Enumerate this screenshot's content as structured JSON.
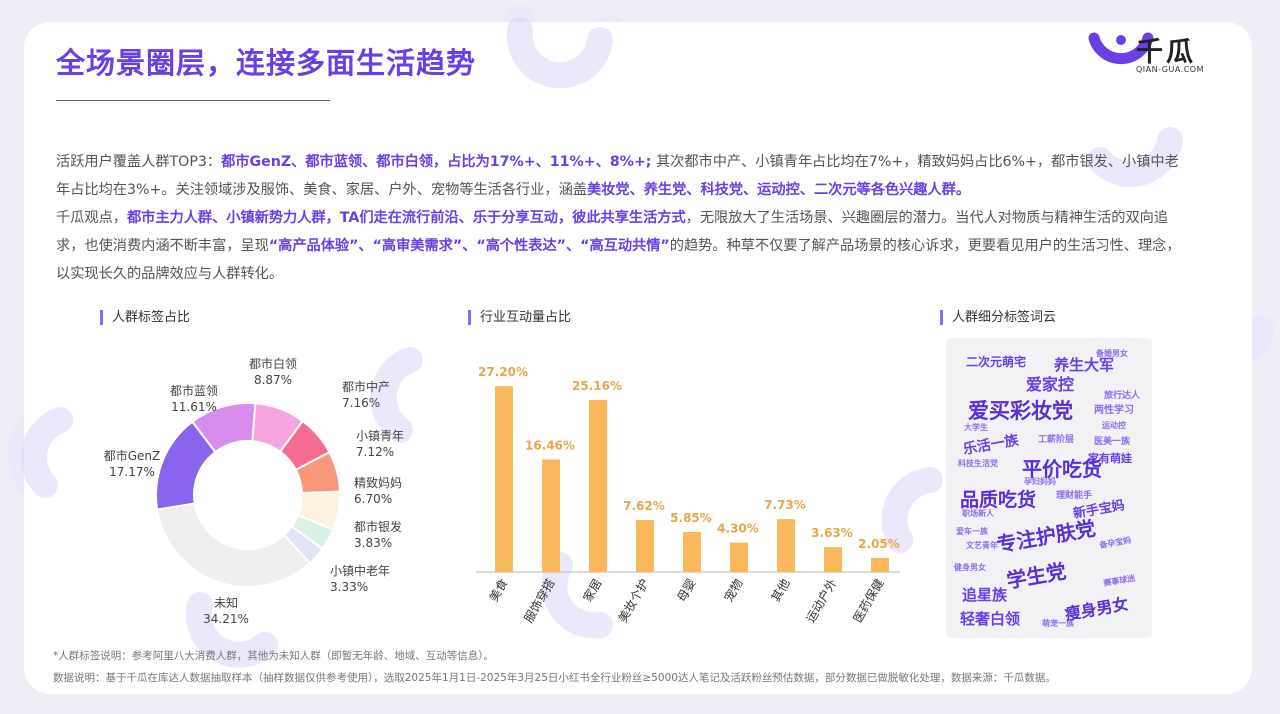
{
  "header": {
    "title": "全场景圈层，连接多面生活趋势",
    "logo_text": "千瓜",
    "logo_sub": "QIAN-GUA.COM"
  },
  "intro": {
    "p1_s1": "活跃用户覆盖人群TOP3：",
    "p1_s2": "都市GenZ、都市蓝领、都市白领，占比为17%+、11%+、8%+;",
    "p1_s3": " 其次都市中产、小镇青年占比均在7%+，精致妈妈占比6%+，都市银发、小镇中老年占比均在3%+。关注领域涉及服饰、美食、家居、户外、宠物等生活各行业，涵盖",
    "p1_s4": "美妆党、养生党、科技党、运动控、二次元等各色兴趣人群。",
    "p2_s1": "千瓜观点，",
    "p2_s2": "都市主力人群、小镇新势力人群，TA们走在流行前沿、乐于分享互动，彼此共享生活方式",
    "p2_s3": "，无限放大了生活场景、兴趣圈层的潜力。当代人对物质与精神生活的双向追求，也使消费内涵不断丰富，呈现",
    "p2_s4": "“高产品体验”、“高审美需求”、“高个性表达”、“高互动共情”",
    "p2_s5": "的趋势。种草不仅要了解产品场景的核心诉求，更要看见用户的生活习性、理念，以实现长久的品牌效应与人群转化。"
  },
  "sections": {
    "donut_title": "人群标签占比",
    "bar_title": "行业互动量占比",
    "cloud_title": "人群细分标签词云"
  },
  "chart_data": [
    {
      "type": "pie",
      "title": "人群标签占比",
      "donut": true,
      "slices": [
        {
          "label": "都市白领",
          "value": 8.87,
          "value_label": "8.87%",
          "color": "#f6a3de"
        },
        {
          "label": "都市中产",
          "value": 7.16,
          "value_label": "7.16%",
          "color": "#f56d8e"
        },
        {
          "label": "小镇青年",
          "value": 7.12,
          "value_label": "7.12%",
          "color": "#f6977a"
        },
        {
          "label": "精致妈妈",
          "value": 6.7,
          "value_label": "6.70%",
          "color": "#fdf1e0"
        },
        {
          "label": "都市银发",
          "value": 3.83,
          "value_label": "3.83%",
          "color": "#daf1e6"
        },
        {
          "label": "小镇中老年",
          "value": 3.33,
          "value_label": "3.33%",
          "color": "#e2e4f5"
        },
        {
          "label": "未知",
          "value": 34.21,
          "value_label": "34.21%",
          "color": "#efefef"
        },
        {
          "label": "都市GenZ",
          "value": 17.17,
          "value_label": "17.17%",
          "color": "#8a64ec"
        },
        {
          "label": "都市蓝领",
          "value": 11.61,
          "value_label": "11.61%",
          "color": "#d88cee"
        }
      ]
    },
    {
      "type": "bar",
      "title": "行业互动量占比",
      "categories": [
        "美食",
        "服饰穿搭",
        "家居",
        "美妆个护",
        "母婴",
        "宠物",
        "其他",
        "运动户外",
        "医药保健"
      ],
      "values": [
        27.2,
        16.46,
        25.16,
        7.62,
        5.85,
        4.3,
        7.73,
        3.63,
        2.05
      ],
      "value_labels": [
        "27.20%",
        "16.46%",
        "25.16%",
        "7.62%",
        "5.85%",
        "4.30%",
        "7.73%",
        "3.63%",
        "2.05%"
      ],
      "ylim": [
        0,
        30
      ],
      "bar_color": "#f8b85b",
      "label_color": "#e8a64a",
      "grid": false
    }
  ],
  "word_cloud": {
    "title": "人群细分标签词云",
    "words": [
      {
        "text": "二次元萌宅",
        "color": "#6b3fe8"
      },
      {
        "text": "养生大军",
        "color": "#6b3fe8"
      },
      {
        "text": "备婚男女",
        "color": "#8e6cf0"
      },
      {
        "text": "爱家控",
        "color": "#6b3fe8"
      },
      {
        "text": "旅行达人",
        "color": "#8e6cf0"
      },
      {
        "text": "爱买彩妆党",
        "color": "#5a2fd8"
      },
      {
        "text": "两性学习",
        "color": "#8e6cf0"
      },
      {
        "text": "运动控",
        "color": "#8e6cf0"
      },
      {
        "text": "大学生",
        "color": "#8e6cf0"
      },
      {
        "text": "乐活一族",
        "color": "#6b3fe8"
      },
      {
        "text": "工薪阶层",
        "color": "#8e6cf0"
      },
      {
        "text": "医美一族",
        "color": "#8e6cf0"
      },
      {
        "text": "家有萌娃",
        "color": "#6b3fe8"
      },
      {
        "text": "科技生活党",
        "color": "#8e6cf0"
      },
      {
        "text": "平价吃货",
        "color": "#5a2fd8"
      },
      {
        "text": "孕妇妈妈",
        "color": "#8e6cf0"
      },
      {
        "text": "品质吃货",
        "color": "#5a2fd8"
      },
      {
        "text": "理财能手",
        "color": "#8e6cf0"
      },
      {
        "text": "职场新人",
        "color": "#8e6cf0"
      },
      {
        "text": "新手宝妈",
        "color": "#6b3fe8"
      },
      {
        "text": "爱车一族",
        "color": "#8e6cf0"
      },
      {
        "text": "专注护肤党",
        "color": "#5a2fd8"
      },
      {
        "text": "文艺青年",
        "color": "#8e6cf0"
      },
      {
        "text": "备孕宝妈",
        "color": "#8e6cf0"
      },
      {
        "text": "健身男女",
        "color": "#8e6cf0"
      },
      {
        "text": "学生党",
        "color": "#5a2fd8"
      },
      {
        "text": "赛事球迷",
        "color": "#8e6cf0"
      },
      {
        "text": "追星族",
        "color": "#6b3fe8"
      },
      {
        "text": "轻奢白领",
        "color": "#6b3fe8"
      },
      {
        "text": "萌宠一族",
        "color": "#8e6cf0"
      },
      {
        "text": "瘦身男女",
        "color": "#5a2fd8"
      }
    ]
  },
  "footer": {
    "note1": "*人群标签说明：参考阿里八大消费人群，其他为未知人群（即暂无年龄、地域、互动等信息）。",
    "note2": "数据说明：基于千瓜在库达人数据抽取样本（抽样数据仅供参考使用），选取2025年1月1日-2025年3月25日小红书全行业粉丝≥5000达人笔记及活跃粉丝预估数据，部分数据已做脱敏化处理，数据来源：千瓜数据。"
  }
}
